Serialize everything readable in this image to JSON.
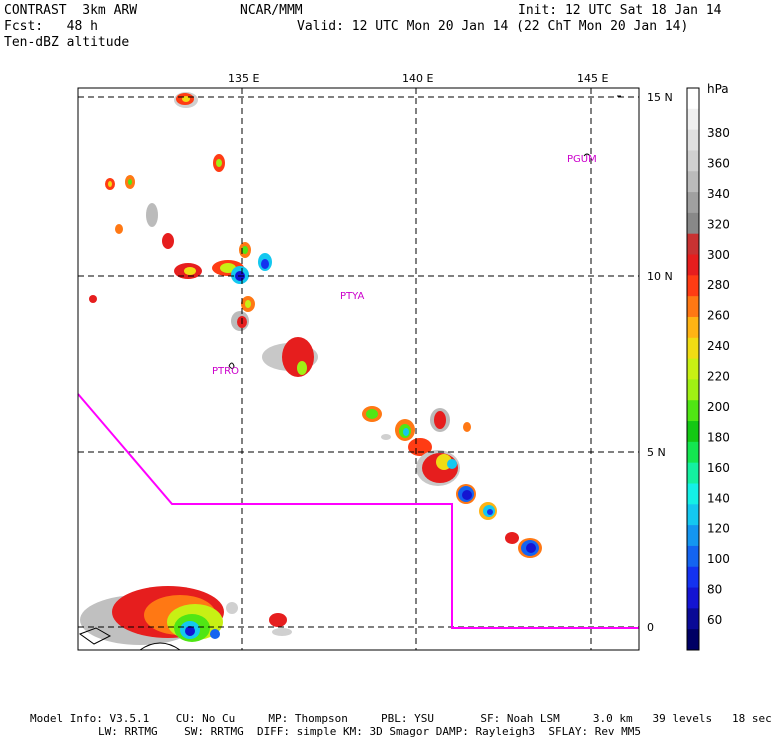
{
  "header": {
    "line1_left": "CONTRAST  3km ARW",
    "line1_center": "NCAR/MMM",
    "line1_right": "Init: 12 UTC Sat 18 Jan 14",
    "line2_left": "Fcst:   48 h",
    "line2_right": "Valid: 12 UTC Mon 20 Jan 14 (22 ChT Mon 20 Jan 14)",
    "line3_left": "Ten-dBZ altitude"
  },
  "map": {
    "lon_labels": [
      "135 E",
      "140 E",
      "145 E"
    ],
    "lat_labels": [
      "15 N",
      "10 N",
      "5 N",
      "0"
    ],
    "stations": [
      "PGUM",
      "PTYA",
      "PTRO"
    ],
    "boundary_color": "#ff00ff"
  },
  "colorbar": {
    "unit": "hPa",
    "labels": [
      "380",
      "360",
      "340",
      "320",
      "300",
      "280",
      "260",
      "240",
      "220",
      "200",
      "180",
      "160",
      "140",
      "120",
      "100",
      "80",
      "60"
    ],
    "colors": [
      "#ffffff",
      "#f0f0f0",
      "#e0e0e0",
      "#d0d0d0",
      "#bbbbbb",
      "#a0a0a0",
      "#888888",
      "#c83232",
      "#e61e1e",
      "#ff3c14",
      "#ff7814",
      "#ffb414",
      "#f0dc14",
      "#c8f014",
      "#a0f014",
      "#50e614",
      "#14c814",
      "#14e650",
      "#14f0a0",
      "#14f0e6",
      "#14c8f0",
      "#1496f0",
      "#1464f0",
      "#1432f0",
      "#1414d2",
      "#0a0a96",
      "#000064"
    ]
  },
  "footer": {
    "line1": "Model Info: V3.5.1    CU: No Cu     MP: Thompson     PBL: YSU       SF: Noah LSM     3.0 km   39 levels   18 sec",
    "line2": "LW: RRTMG    SW: RRTMG  DIFF: simple KM: 3D Smagor DAMP: Rayleigh3  SFLAY: Rev MM5"
  }
}
